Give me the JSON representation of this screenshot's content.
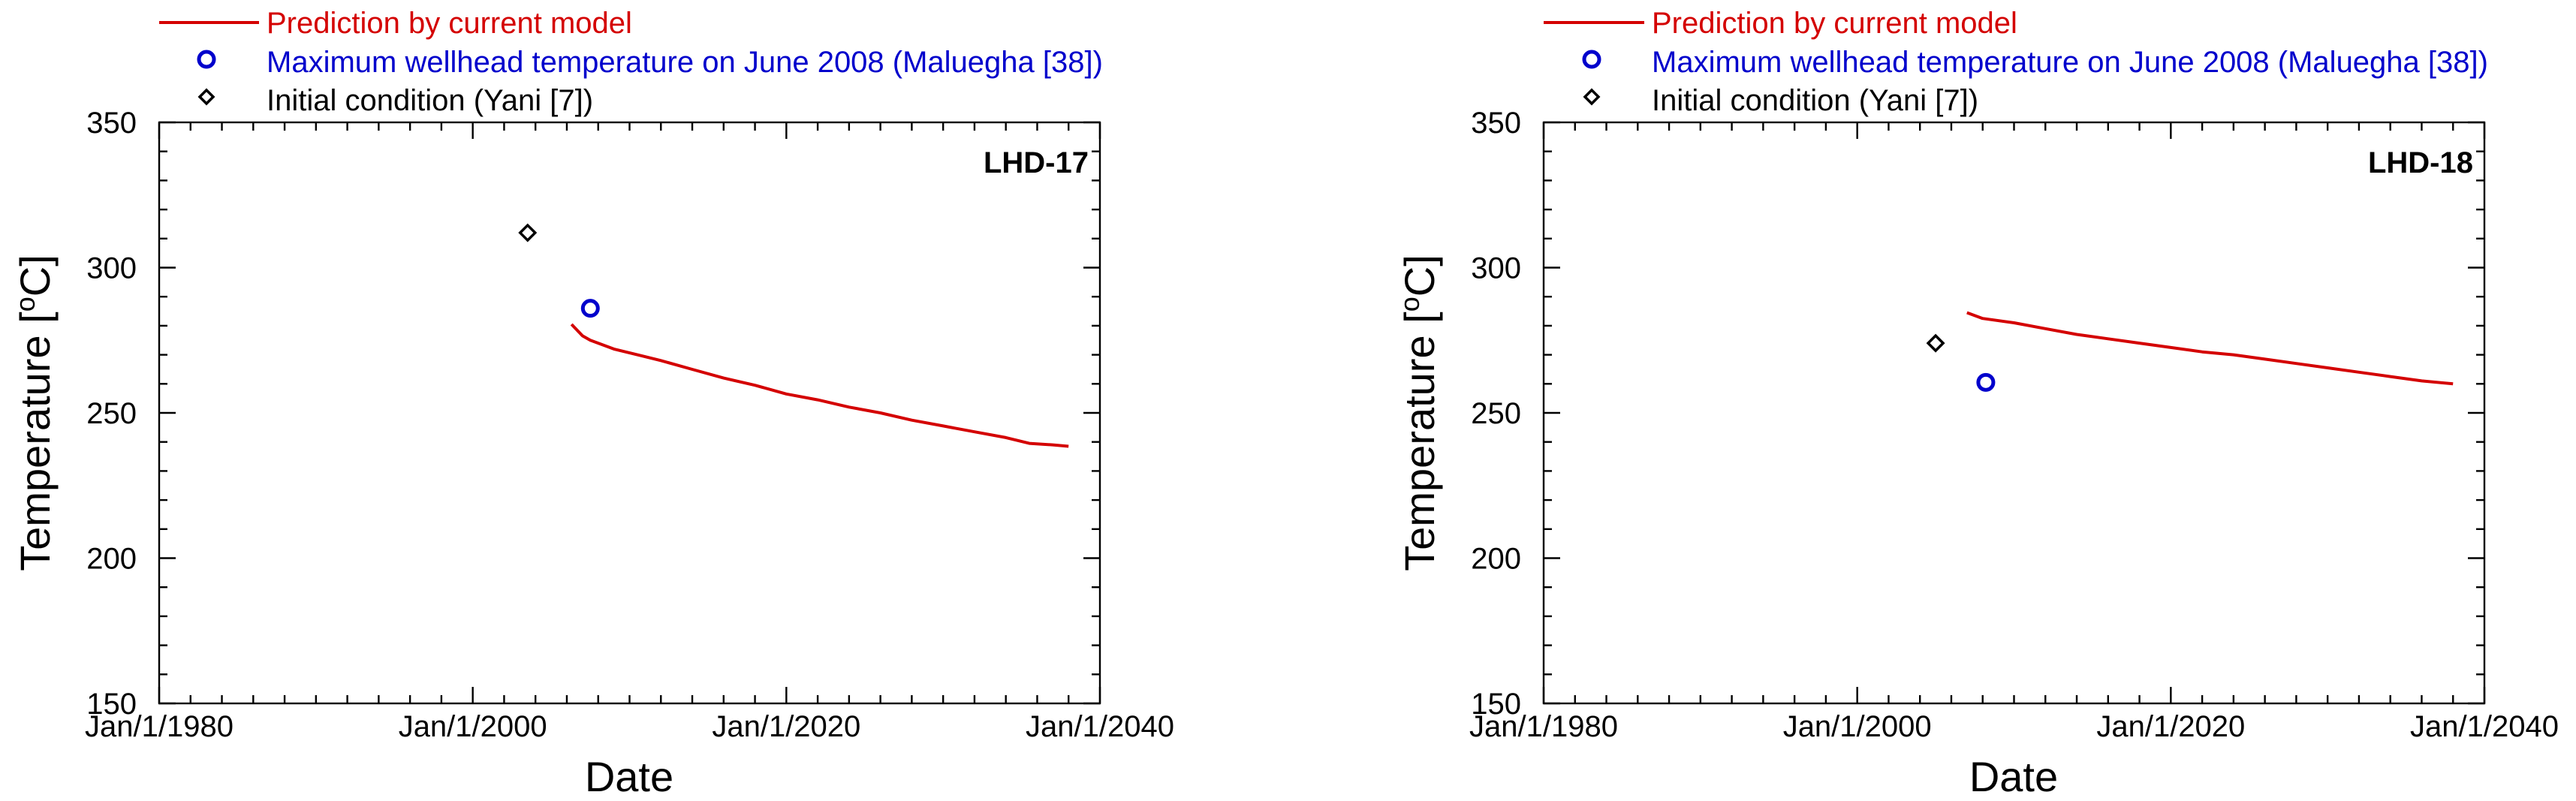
{
  "legend": {
    "prediction": "Prediction by current model",
    "wellhead": "Maximum wellhead temperature on June 2008 (Maluegha [38])",
    "initial": "Initial condition (Yani [7])"
  },
  "colors": {
    "prediction": "#d40000",
    "wellhead": "#0000cc",
    "initial": "#000000"
  },
  "chart_data": [
    {
      "type": "line",
      "title": "LHD-17",
      "xlabel": "Date",
      "ylabel": "Temperature [°C]",
      "ylabel_parts": {
        "pre": "Temperature [",
        "sup": "o",
        "post": "C]"
      },
      "xlim": [
        1980,
        2040
      ],
      "ylim": [
        150,
        350
      ],
      "x_ticks": [
        {
          "value": 1980,
          "label": "Jan/1/1980"
        },
        {
          "value": 2000,
          "label": "Jan/1/2000"
        },
        {
          "value": 2020,
          "label": "Jan/1/2020"
        },
        {
          "value": 2040,
          "label": "Jan/1/2040"
        }
      ],
      "y_ticks": [
        150,
        200,
        250,
        300,
        350
      ],
      "x_minor_step": 2,
      "y_minor_step": 10,
      "series": [
        {
          "name": "Prediction by current model",
          "x": [
            2006.3,
            2007.0,
            2007.5,
            2009.0,
            2010.5,
            2012.0,
            2014.0,
            2016.0,
            2018.0,
            2020.0,
            2022.0,
            2024.0,
            2026.0,
            2028.0,
            2030.0,
            2032.0,
            2034.0,
            2035.5,
            2037.0,
            2038.0
          ],
          "y": [
            280.5,
            276.5,
            275.0,
            272.0,
            270.0,
            268.0,
            265.0,
            262.0,
            259.5,
            256.5,
            254.5,
            252.0,
            250.0,
            247.5,
            245.5,
            243.5,
            241.5,
            239.5,
            239.0,
            238.5
          ]
        },
        {
          "name": "Maximum wellhead temperature on June 2008 (Maluegha [38])",
          "x": [
            2007.5
          ],
          "y": [
            286.0
          ]
        },
        {
          "name": "Initial condition (Yani [7])",
          "x": [
            2003.5
          ],
          "y": [
            312.0
          ]
        }
      ]
    },
    {
      "type": "line",
      "title": "LHD-18",
      "xlabel": "Date",
      "ylabel": "Temperature [°C]",
      "ylabel_parts": {
        "pre": "Temperature [",
        "sup": "o",
        "post": "C]"
      },
      "xlim": [
        1980,
        2040
      ],
      "ylim": [
        150,
        350
      ],
      "x_ticks": [
        {
          "value": 1980,
          "label": "Jan/1/1980"
        },
        {
          "value": 2000,
          "label": "Jan/1/2000"
        },
        {
          "value": 2020,
          "label": "Jan/1/2020"
        },
        {
          "value": 2040,
          "label": "Jan/1/2040"
        }
      ],
      "y_ticks": [
        150,
        200,
        250,
        300,
        350
      ],
      "x_minor_step": 2,
      "y_minor_step": 10,
      "series": [
        {
          "name": "Prediction by current model",
          "x": [
            2007.0,
            2008.0,
            2010.0,
            2012.0,
            2014.0,
            2016.0,
            2018.0,
            2020.0,
            2022.0,
            2024.0,
            2026.0,
            2028.0,
            2030.0,
            2032.0,
            2034.0,
            2036.0,
            2038.0
          ],
          "y": [
            284.5,
            282.5,
            281.0,
            279.0,
            277.0,
            275.5,
            274.0,
            272.5,
            271.0,
            270.0,
            268.5,
            267.0,
            265.5,
            264.0,
            262.5,
            261.0,
            260.0
          ]
        },
        {
          "name": "Maximum wellhead temperature on June 2008 (Maluegha [38])",
          "x": [
            2008.2
          ],
          "y": [
            260.5
          ]
        },
        {
          "name": "Initial condition (Yani [7])",
          "x": [
            2005.0
          ],
          "y": [
            274.0
          ]
        }
      ]
    }
  ]
}
